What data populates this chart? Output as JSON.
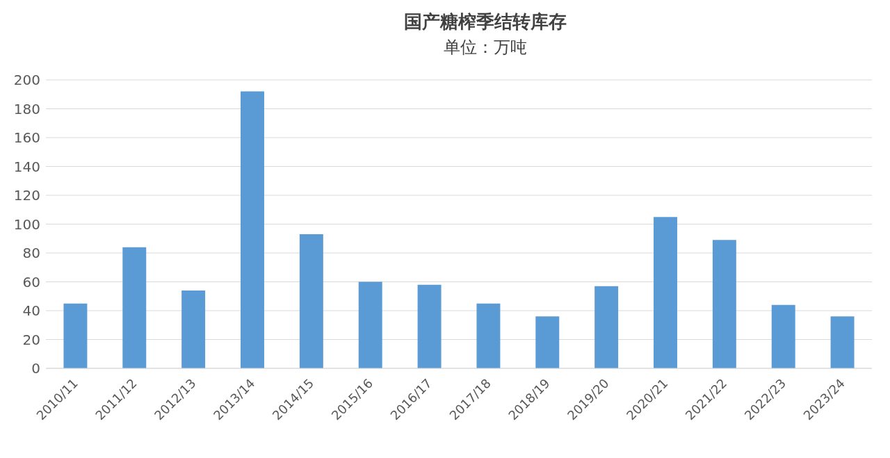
{
  "chart_data": {
    "type": "bar",
    "title": "国产糖榨季结转库存",
    "subtitle": "单位：万吨",
    "categories": [
      "2010/11",
      "2011/12",
      "2012/13",
      "2013/14",
      "2014/15",
      "2015/16",
      "2016/17",
      "2017/18",
      "2018/19",
      "2019/20",
      "2020/21",
      "2021/22",
      "2022/23",
      "2023/24"
    ],
    "values": [
      45,
      84,
      54,
      192,
      93,
      60,
      58,
      45,
      36,
      57,
      105,
      89,
      44,
      36
    ],
    "color": "#5b9bd5",
    "ylim": [
      0,
      200
    ],
    "yticks": [
      0,
      20,
      40,
      60,
      80,
      100,
      120,
      140,
      160,
      180,
      200
    ],
    "grid": "y"
  }
}
